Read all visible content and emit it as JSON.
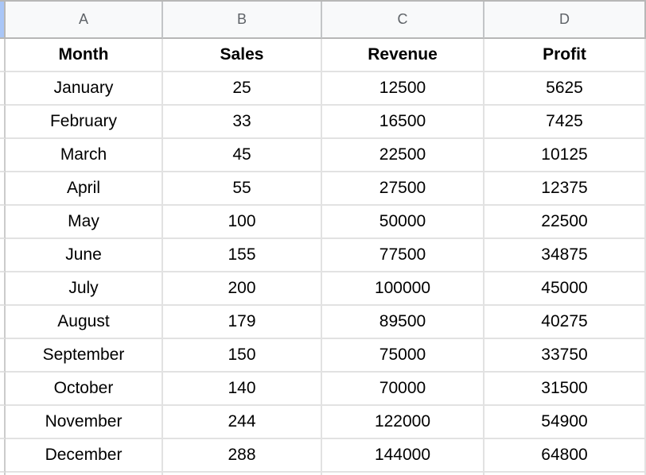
{
  "sheet": {
    "column_letters": [
      "A",
      "B",
      "C",
      "D"
    ],
    "header_row": [
      "Month",
      "Sales",
      "Revenue",
      "Profit"
    ],
    "rows": [
      [
        "January",
        "25",
        "12500",
        "5625"
      ],
      [
        "February",
        "33",
        "16500",
        "7425"
      ],
      [
        "March",
        "45",
        "22500",
        "10125"
      ],
      [
        "April",
        "55",
        "27500",
        "12375"
      ],
      [
        "May",
        "100",
        "50000",
        "22500"
      ],
      [
        "June",
        "155",
        "77500",
        "34875"
      ],
      [
        "July",
        "200",
        "100000",
        "45000"
      ],
      [
        "August",
        "179",
        "89500",
        "40275"
      ],
      [
        "September",
        "150",
        "75000",
        "33750"
      ],
      [
        "October",
        "140",
        "70000",
        "31500"
      ],
      [
        "November",
        "244",
        "122000",
        "54900"
      ],
      [
        "December",
        "288",
        "144000",
        "64800"
      ]
    ],
    "colors": {
      "header_bg": "#f8f9fa",
      "header_text": "#5f6368",
      "selected_sliver": "#a9c6f7",
      "header_border": "#b7b7b7",
      "col_separator": "#c3c5c7",
      "gridline": "#e2e2e2",
      "cell_text": "#000000"
    }
  }
}
